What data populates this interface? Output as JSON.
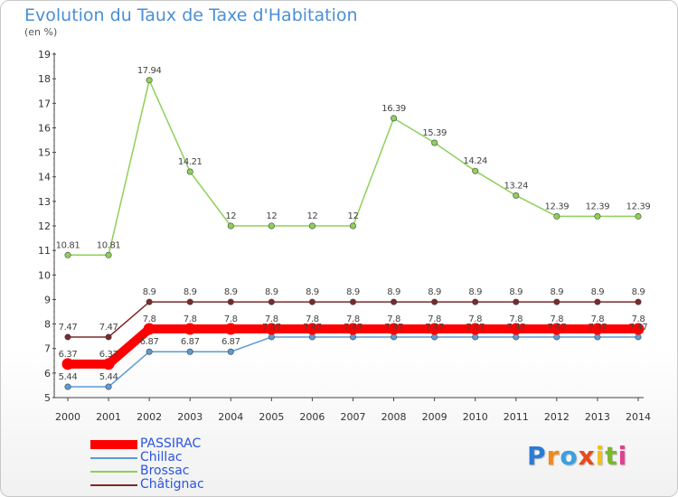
{
  "header": {
    "title": "Evolution du Taux de Taxe d'Habitation",
    "unit": "(en %)"
  },
  "logo": {
    "letters": [
      "P",
      "r",
      "o",
      "x",
      "i",
      "t",
      "i"
    ],
    "colors": [
      "#2a7bd8",
      "#f08a1c",
      "#3aa0e0",
      "#e84a1c",
      "#f0c020",
      "#7ab828",
      "#e04090"
    ]
  },
  "chart_data": {
    "type": "line",
    "x": [
      2000,
      2001,
      2002,
      2003,
      2004,
      2005,
      2006,
      2007,
      2008,
      2009,
      2010,
      2011,
      2012,
      2013,
      2014
    ],
    "ylim": [
      5,
      19
    ],
    "yticks": [
      5,
      6,
      7,
      8,
      9,
      10,
      11,
      12,
      13,
      14,
      15,
      16,
      17,
      18,
      19
    ],
    "grid": false,
    "legend_position": "bottom-left",
    "series": [
      {
        "name": "PASSIRAC",
        "color": "#ff0000",
        "values": [
          6.37,
          6.37,
          7.8,
          7.8,
          7.8,
          7.8,
          7.8,
          7.8,
          7.8,
          7.8,
          7.8,
          7.8,
          7.8,
          7.8,
          7.8
        ],
        "labels": [
          "6.37",
          "6.37",
          "7.8",
          "7.8",
          "7.8",
          "7.8",
          "7.8",
          "7.8",
          "7.8",
          "7.8",
          "7.8",
          "7.8",
          "7.8",
          "7.8",
          "7.8"
        ]
      },
      {
        "name": "Chillac",
        "color": "#5b9bd5",
        "values": [
          5.44,
          5.44,
          6.87,
          6.87,
          6.87,
          7.47,
          7.47,
          7.47,
          7.47,
          7.47,
          7.47,
          7.47,
          7.47,
          7.47,
          7.47
        ],
        "labels": [
          "5.44",
          "5.44",
          "6.87",
          "6.87",
          "6.87",
          "7.47",
          "7.47",
          "7.47",
          "7.47",
          "7.47",
          "7.47",
          "7.47",
          "7.47",
          "7.47",
          "7.47"
        ]
      },
      {
        "name": "Brossac",
        "color": "#8ed05a",
        "values": [
          10.81,
          10.81,
          17.94,
          14.21,
          12,
          12,
          12,
          12,
          16.39,
          15.39,
          14.24,
          13.24,
          12.39,
          12.39,
          12.39
        ],
        "labels": [
          "10.81",
          "10.81",
          "17.94",
          "14.21",
          "12",
          "12",
          "12",
          "12",
          "16.39",
          "15.39",
          "14.24",
          "13.24",
          "12.39",
          "12.39",
          "12.39"
        ]
      },
      {
        "name": "Châtignac",
        "color": "#7a2a2a",
        "values": [
          7.47,
          7.47,
          8.9,
          8.9,
          8.9,
          8.9,
          8.9,
          8.9,
          8.9,
          8.9,
          8.9,
          8.9,
          8.9,
          8.9,
          8.9
        ],
        "labels": [
          "7.47",
          "7.47",
          "8.9",
          "8.9",
          "8.9",
          "8.9",
          "8.9",
          "8.9",
          "8.9",
          "8.9",
          "8.9",
          "8.9",
          "8.9",
          "8.9",
          "8.9"
        ]
      }
    ]
  }
}
